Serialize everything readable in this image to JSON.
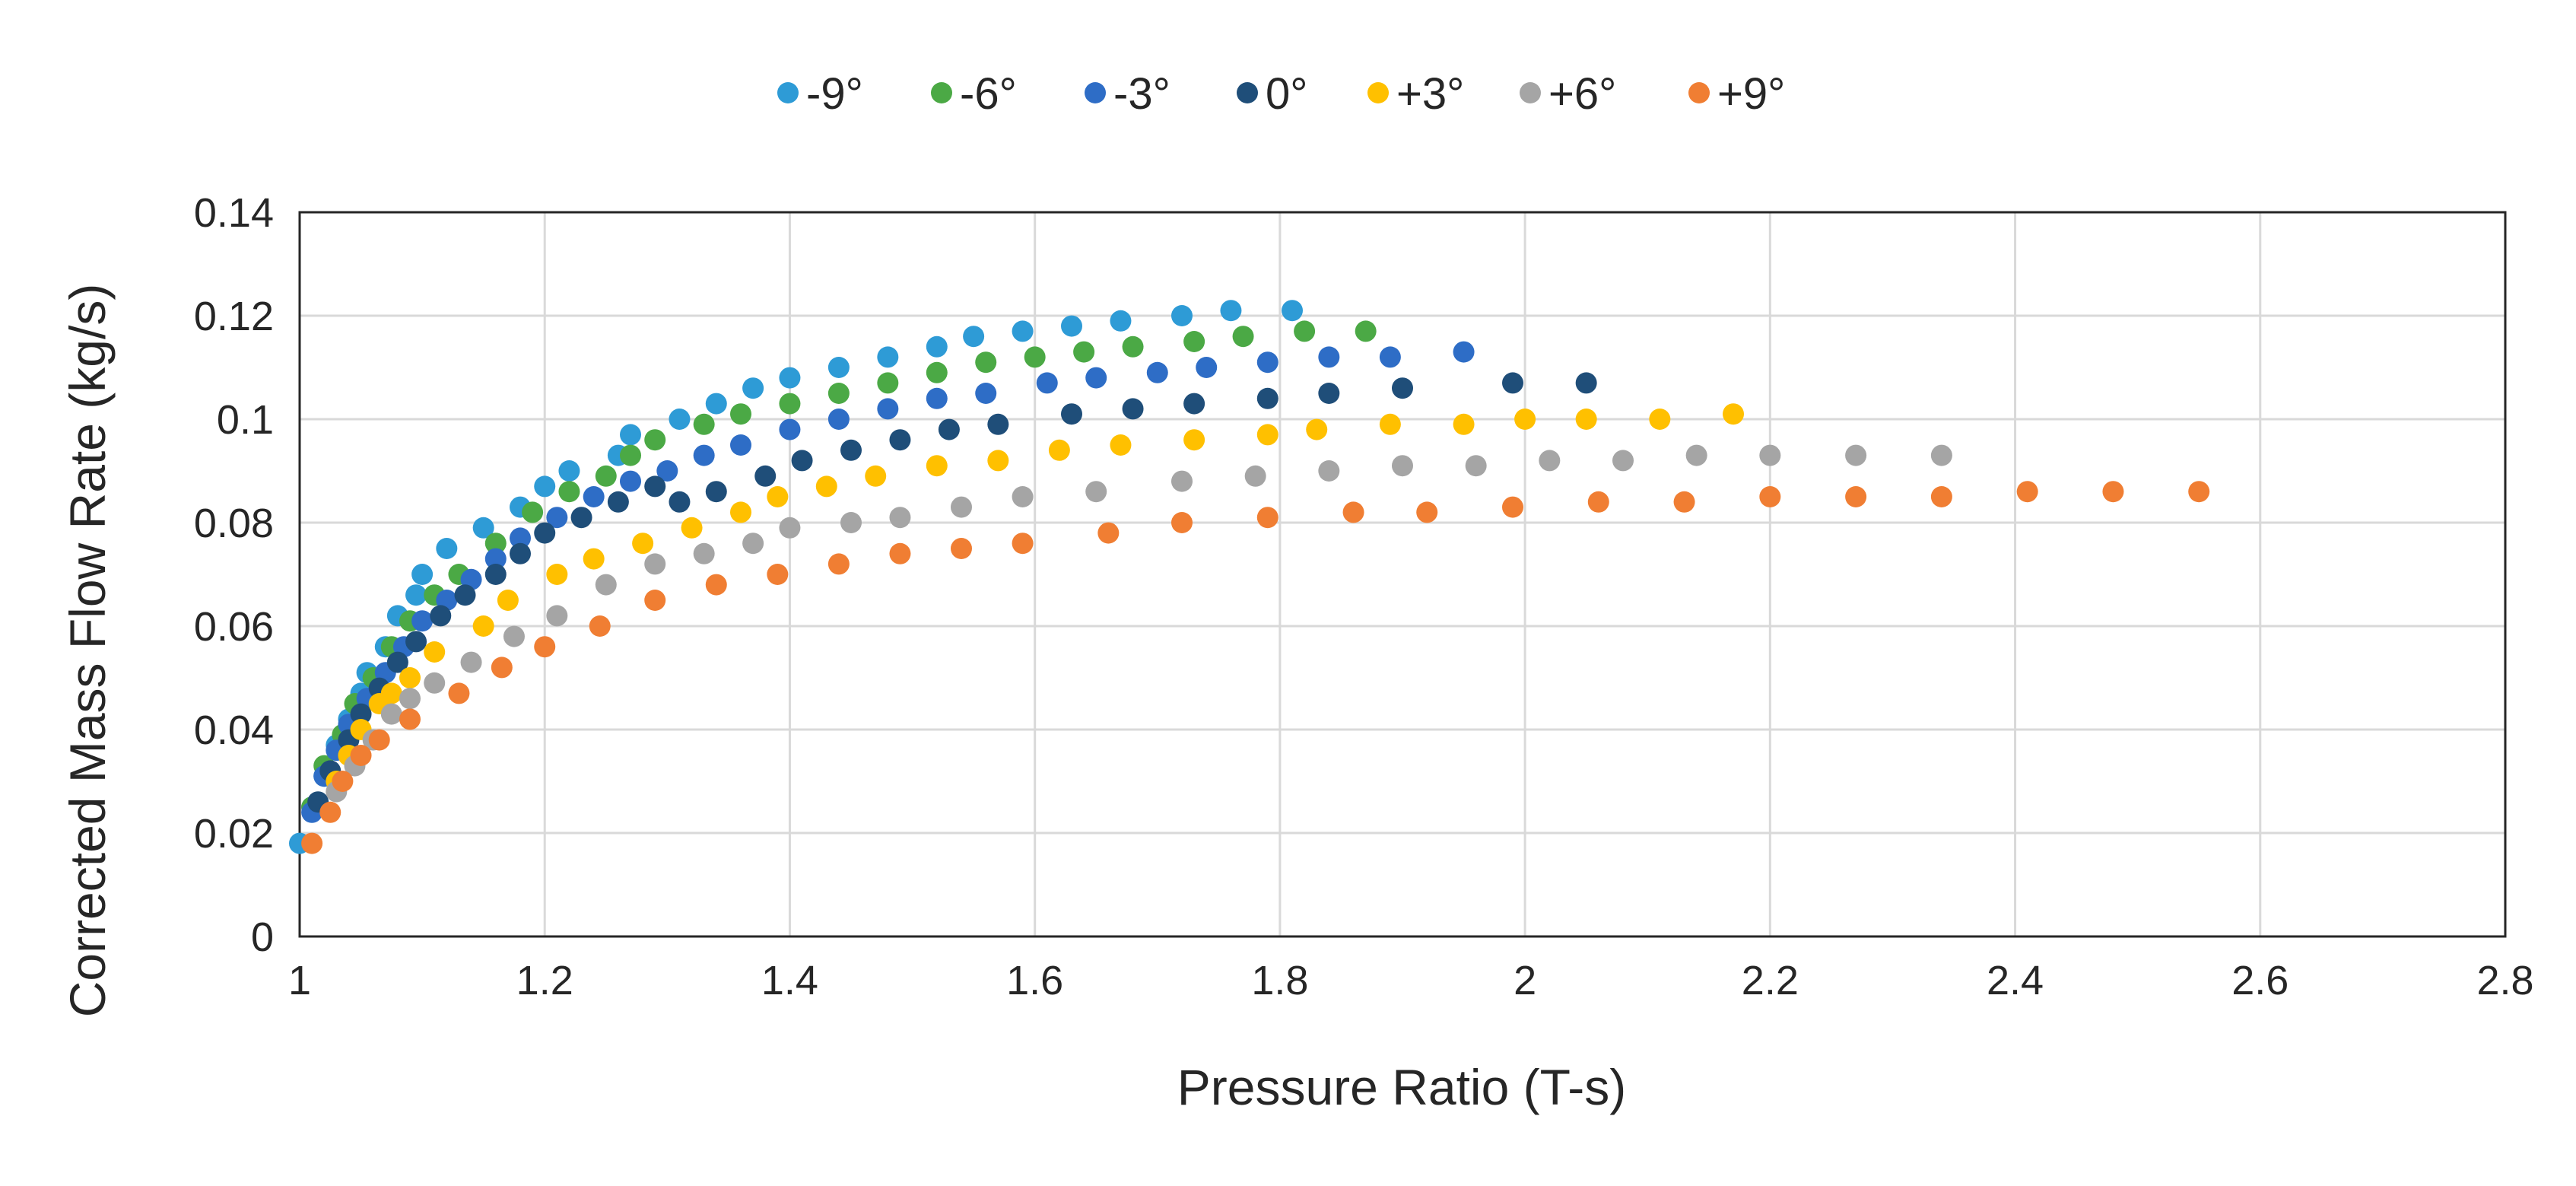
{
  "chart_data": {
    "type": "scatter",
    "title": "",
    "xlabel": "Pressure Ratio (T-s)",
    "ylabel": "Corrected Mass Flow Rate (kg/s)",
    "xlim": [
      1,
      2.8
    ],
    "ylim": [
      0,
      0.14
    ],
    "x_ticks": [
      1,
      1.2,
      1.4,
      1.6,
      1.8,
      2,
      2.2,
      2.4,
      2.6,
      2.8
    ],
    "x_tick_labels": [
      "1",
      "1.2",
      "1.4",
      "1.6",
      "1.8",
      "2",
      "2.2",
      "2.4",
      "2.6",
      "2.8"
    ],
    "y_ticks": [
      0,
      0.02,
      0.04,
      0.06,
      0.08,
      0.1,
      0.12,
      0.14
    ],
    "y_tick_labels": [
      "0",
      "0.02",
      "0.04",
      "0.06",
      "0.08",
      "0.1",
      "0.12",
      "0.14"
    ],
    "grid": true,
    "legend_position": "top-center",
    "series": [
      {
        "name": "-9°",
        "color": "#2E9BD6",
        "points": [
          [
            1.0,
            0.018
          ],
          [
            1.01,
            0.025
          ],
          [
            1.02,
            0.031
          ],
          [
            1.03,
            0.037
          ],
          [
            1.04,
            0.042
          ],
          [
            1.05,
            0.047
          ],
          [
            1.055,
            0.051
          ],
          [
            1.07,
            0.056
          ],
          [
            1.08,
            0.062
          ],
          [
            1.095,
            0.066
          ],
          [
            1.1,
            0.07
          ],
          [
            1.12,
            0.075
          ],
          [
            1.15,
            0.079
          ],
          [
            1.18,
            0.083
          ],
          [
            1.2,
            0.087
          ],
          [
            1.22,
            0.09
          ],
          [
            1.26,
            0.093
          ],
          [
            1.27,
            0.097
          ],
          [
            1.31,
            0.1
          ],
          [
            1.34,
            0.103
          ],
          [
            1.37,
            0.106
          ],
          [
            1.4,
            0.108
          ],
          [
            1.44,
            0.11
          ],
          [
            1.48,
            0.112
          ],
          [
            1.52,
            0.114
          ],
          [
            1.55,
            0.116
          ],
          [
            1.59,
            0.117
          ],
          [
            1.63,
            0.118
          ],
          [
            1.67,
            0.119
          ],
          [
            1.72,
            0.12
          ],
          [
            1.76,
            0.121
          ],
          [
            1.81,
            0.121
          ]
        ]
      },
      {
        "name": "-6°",
        "color": "#4BA945",
        "points": [
          [
            1.01,
            0.025
          ],
          [
            1.02,
            0.033
          ],
          [
            1.035,
            0.039
          ],
          [
            1.045,
            0.045
          ],
          [
            1.06,
            0.05
          ],
          [
            1.075,
            0.056
          ],
          [
            1.09,
            0.061
          ],
          [
            1.11,
            0.066
          ],
          [
            1.13,
            0.07
          ],
          [
            1.16,
            0.076
          ],
          [
            1.19,
            0.082
          ],
          [
            1.22,
            0.086
          ],
          [
            1.25,
            0.089
          ],
          [
            1.27,
            0.093
          ],
          [
            1.29,
            0.096
          ],
          [
            1.33,
            0.099
          ],
          [
            1.36,
            0.101
          ],
          [
            1.4,
            0.103
          ],
          [
            1.44,
            0.105
          ],
          [
            1.48,
            0.107
          ],
          [
            1.52,
            0.109
          ],
          [
            1.56,
            0.111
          ],
          [
            1.6,
            0.112
          ],
          [
            1.64,
            0.113
          ],
          [
            1.68,
            0.114
          ],
          [
            1.73,
            0.115
          ],
          [
            1.77,
            0.116
          ],
          [
            1.82,
            0.117
          ],
          [
            1.87,
            0.117
          ]
        ]
      },
      {
        "name": "-3°",
        "color": "#2E6DC6",
        "points": [
          [
            1.01,
            0.024
          ],
          [
            1.02,
            0.031
          ],
          [
            1.03,
            0.036
          ],
          [
            1.04,
            0.041
          ],
          [
            1.055,
            0.046
          ],
          [
            1.07,
            0.051
          ],
          [
            1.085,
            0.056
          ],
          [
            1.1,
            0.061
          ],
          [
            1.12,
            0.065
          ],
          [
            1.14,
            0.069
          ],
          [
            1.16,
            0.073
          ],
          [
            1.18,
            0.077
          ],
          [
            1.21,
            0.081
          ],
          [
            1.24,
            0.085
          ],
          [
            1.27,
            0.088
          ],
          [
            1.3,
            0.09
          ],
          [
            1.33,
            0.093
          ],
          [
            1.36,
            0.095
          ],
          [
            1.4,
            0.098
          ],
          [
            1.44,
            0.1
          ],
          [
            1.48,
            0.102
          ],
          [
            1.52,
            0.104
          ],
          [
            1.56,
            0.105
          ],
          [
            1.61,
            0.107
          ],
          [
            1.65,
            0.108
          ],
          [
            1.7,
            0.109
          ],
          [
            1.74,
            0.11
          ],
          [
            1.79,
            0.111
          ],
          [
            1.84,
            0.112
          ],
          [
            1.89,
            0.112
          ],
          [
            1.95,
            0.113
          ]
        ]
      },
      {
        "name": "0°",
        "color": "#1F4E79",
        "points": [
          [
            1.015,
            0.026
          ],
          [
            1.025,
            0.032
          ],
          [
            1.04,
            0.038
          ],
          [
            1.05,
            0.043
          ],
          [
            1.065,
            0.048
          ],
          [
            1.08,
            0.053
          ],
          [
            1.095,
            0.057
          ],
          [
            1.115,
            0.062
          ],
          [
            1.135,
            0.066
          ],
          [
            1.16,
            0.07
          ],
          [
            1.18,
            0.074
          ],
          [
            1.2,
            0.078
          ],
          [
            1.23,
            0.081
          ],
          [
            1.26,
            0.084
          ],
          [
            1.29,
            0.087
          ],
          [
            1.31,
            0.084
          ],
          [
            1.34,
            0.086
          ],
          [
            1.38,
            0.089
          ],
          [
            1.41,
            0.092
          ],
          [
            1.45,
            0.094
          ],
          [
            1.49,
            0.096
          ],
          [
            1.53,
            0.098
          ],
          [
            1.57,
            0.099
          ],
          [
            1.63,
            0.101
          ],
          [
            1.68,
            0.102
          ],
          [
            1.73,
            0.103
          ],
          [
            1.79,
            0.104
          ],
          [
            1.84,
            0.105
          ],
          [
            1.9,
            0.106
          ],
          [
            1.99,
            0.107
          ],
          [
            2.05,
            0.107
          ]
        ]
      },
      {
        "name": "+3°",
        "color": "#FFC000",
        "points": [
          [
            1.03,
            0.03
          ],
          [
            1.04,
            0.035
          ],
          [
            1.05,
            0.04
          ],
          [
            1.065,
            0.045
          ],
          [
            1.075,
            0.047
          ],
          [
            1.09,
            0.05
          ],
          [
            1.11,
            0.055
          ],
          [
            1.15,
            0.06
          ],
          [
            1.17,
            0.065
          ],
          [
            1.21,
            0.07
          ],
          [
            1.24,
            0.073
          ],
          [
            1.28,
            0.076
          ],
          [
            1.32,
            0.079
          ],
          [
            1.36,
            0.082
          ],
          [
            1.39,
            0.085
          ],
          [
            1.43,
            0.087
          ],
          [
            1.47,
            0.089
          ],
          [
            1.52,
            0.091
          ],
          [
            1.57,
            0.092
          ],
          [
            1.62,
            0.094
          ],
          [
            1.67,
            0.095
          ],
          [
            1.73,
            0.096
          ],
          [
            1.79,
            0.097
          ],
          [
            1.83,
            0.098
          ],
          [
            1.89,
            0.099
          ],
          [
            1.95,
            0.099
          ],
          [
            2.0,
            0.1
          ],
          [
            2.05,
            0.1
          ],
          [
            2.11,
            0.1
          ],
          [
            2.17,
            0.101
          ]
        ]
      },
      {
        "name": "+6°",
        "color": "#A5A5A5",
        "points": [
          [
            1.03,
            0.028
          ],
          [
            1.045,
            0.033
          ],
          [
            1.06,
            0.038
          ],
          [
            1.075,
            0.043
          ],
          [
            1.09,
            0.046
          ],
          [
            1.11,
            0.049
          ],
          [
            1.14,
            0.053
          ],
          [
            1.175,
            0.058
          ],
          [
            1.21,
            0.062
          ],
          [
            1.25,
            0.068
          ],
          [
            1.29,
            0.072
          ],
          [
            1.33,
            0.074
          ],
          [
            1.37,
            0.076
          ],
          [
            1.4,
            0.079
          ],
          [
            1.45,
            0.08
          ],
          [
            1.49,
            0.081
          ],
          [
            1.54,
            0.083
          ],
          [
            1.59,
            0.085
          ],
          [
            1.65,
            0.086
          ],
          [
            1.72,
            0.088
          ],
          [
            1.78,
            0.089
          ],
          [
            1.84,
            0.09
          ],
          [
            1.9,
            0.091
          ],
          [
            1.96,
            0.091
          ],
          [
            2.02,
            0.092
          ],
          [
            2.08,
            0.092
          ],
          [
            2.14,
            0.093
          ],
          [
            2.2,
            0.093
          ],
          [
            2.27,
            0.093
          ],
          [
            2.34,
            0.093
          ]
        ]
      },
      {
        "name": "+9°",
        "color": "#F07E33",
        "points": [
          [
            1.01,
            0.018
          ],
          [
            1.025,
            0.024
          ],
          [
            1.035,
            0.03
          ],
          [
            1.05,
            0.035
          ],
          [
            1.065,
            0.038
          ],
          [
            1.09,
            0.042
          ],
          [
            1.13,
            0.047
          ],
          [
            1.165,
            0.052
          ],
          [
            1.2,
            0.056
          ],
          [
            1.245,
            0.06
          ],
          [
            1.29,
            0.065
          ],
          [
            1.34,
            0.068
          ],
          [
            1.39,
            0.07
          ],
          [
            1.44,
            0.072
          ],
          [
            1.49,
            0.074
          ],
          [
            1.54,
            0.075
          ],
          [
            1.59,
            0.076
          ],
          [
            1.66,
            0.078
          ],
          [
            1.72,
            0.08
          ],
          [
            1.79,
            0.081
          ],
          [
            1.86,
            0.082
          ],
          [
            1.92,
            0.082
          ],
          [
            1.99,
            0.083
          ],
          [
            2.06,
            0.084
          ],
          [
            2.13,
            0.084
          ],
          [
            2.2,
            0.085
          ],
          [
            2.27,
            0.085
          ],
          [
            2.34,
            0.085
          ],
          [
            2.41,
            0.086
          ],
          [
            2.48,
            0.086
          ],
          [
            2.55,
            0.086
          ]
        ]
      }
    ]
  }
}
